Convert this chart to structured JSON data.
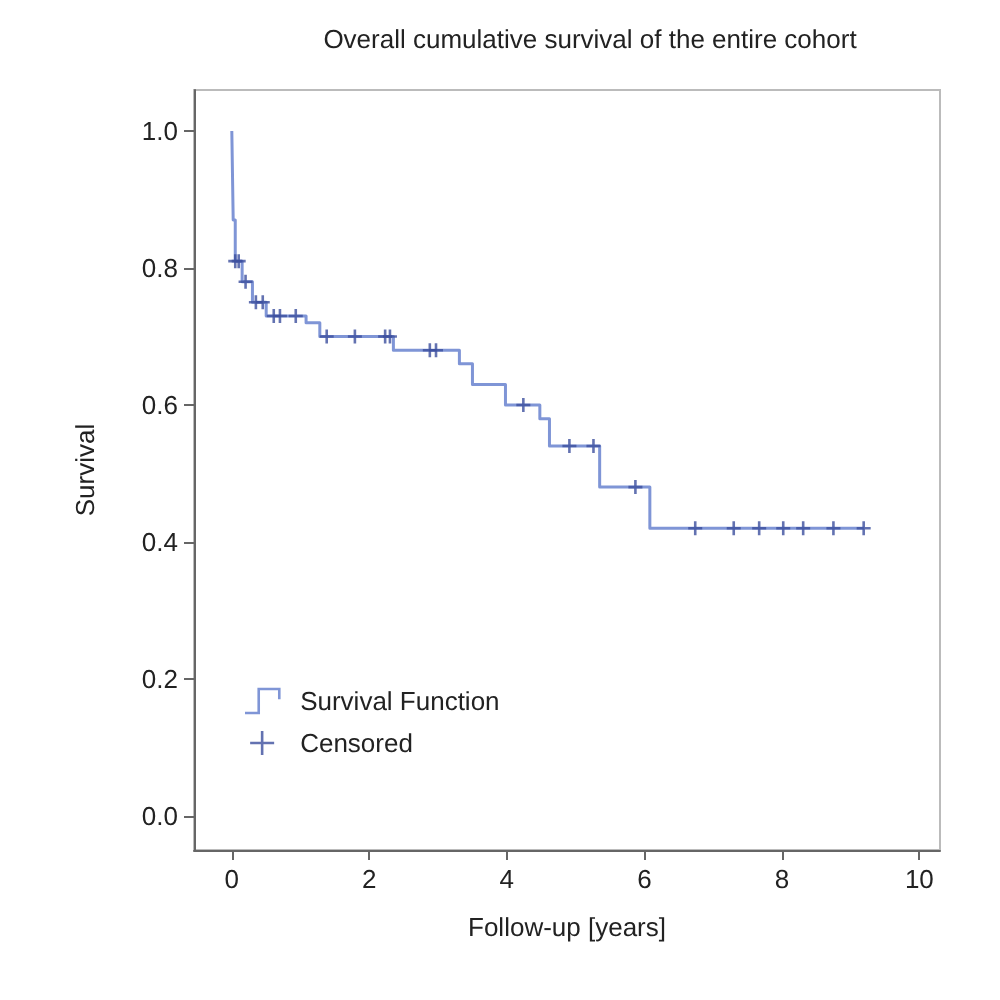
{
  "chart_data": {
    "type": "step",
    "title": "Overall cumulative survival of the entire cohort",
    "xlabel": "Follow-up [years]",
    "ylabel": "Survival",
    "series": [
      {
        "name": "Survival Function",
        "color": "#7f95d6",
        "x": [
          0,
          0.02,
          0.05,
          0.15,
          0.3,
          0.5,
          1.08,
          1.28,
          2.35,
          3.31,
          3.5,
          3.98,
          4.48,
          4.62,
          5.35,
          6.08,
          9.2
        ],
        "values": [
          1.0,
          0.87,
          0.81,
          0.78,
          0.75,
          0.73,
          0.72,
          0.7,
          0.68,
          0.66,
          0.63,
          0.6,
          0.58,
          0.54,
          0.48,
          0.42,
          0.42
        ]
      },
      {
        "name": "Censored",
        "type": "scatter",
        "marker": "cross",
        "color": "#3c4f9e",
        "x": [
          0.05,
          0.1,
          0.2,
          0.35,
          0.45,
          0.61,
          0.7,
          0.93,
          1.38,
          1.79,
          2.23,
          2.3,
          2.88,
          2.97,
          4.24,
          4.91,
          5.26,
          5.87,
          6.74,
          7.3,
          7.67,
          8.02,
          8.31,
          8.75,
          9.19
        ],
        "values": [
          0.81,
          0.81,
          0.78,
          0.75,
          0.75,
          0.73,
          0.73,
          0.73,
          0.7,
          0.7,
          0.7,
          0.7,
          0.68,
          0.68,
          0.6,
          0.54,
          0.54,
          0.48,
          0.42,
          0.42,
          0.42,
          0.42,
          0.42,
          0.42,
          0.42
        ]
      }
    ],
    "xlim": [
      -0.55,
      10.3
    ],
    "xticks": [
      0,
      2,
      4,
      6,
      8,
      10
    ],
    "ylim": [
      -0.05,
      1.06
    ],
    "yticks": [
      {
        "value": 0,
        "label": "0.0"
      },
      {
        "value": 0.2,
        "label": "0.2"
      },
      {
        "value": 0.4,
        "label": "0.4"
      },
      {
        "value": 0.6,
        "label": "0.6"
      },
      {
        "value": 0.8,
        "label": "0.8"
      },
      {
        "value": 1.0,
        "label": "1.0"
      }
    ],
    "grid": false,
    "legend": "bottom left"
  }
}
